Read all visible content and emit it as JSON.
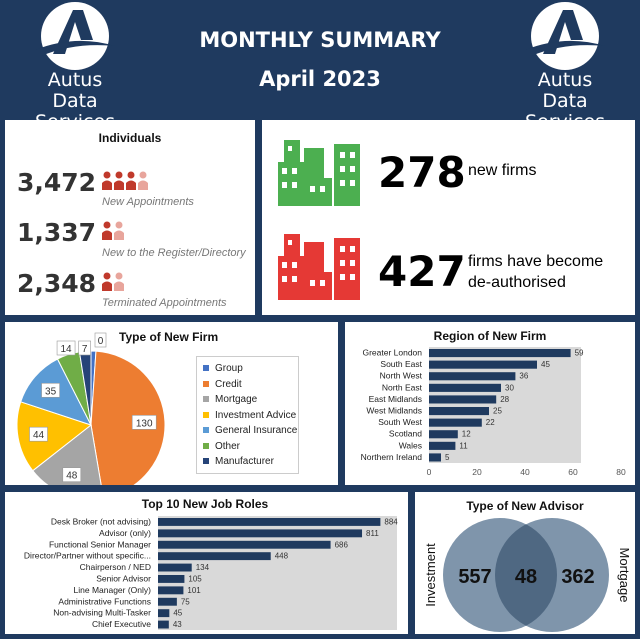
{
  "header": {
    "title": "MONTHLY SUMMARY",
    "subtitle": "April 2023",
    "brand_line1": "Autus",
    "brand_line2": "Data Services"
  },
  "individuals": {
    "title": "Individuals",
    "rows": [
      {
        "value": "3,472",
        "label": "New Appointments",
        "icon": "people-4-icon"
      },
      {
        "value": "1,337",
        "label": "New to the Register/Directory",
        "icon": "people-2-icon"
      },
      {
        "value": "2,348",
        "label": "Terminated Appointments",
        "icon": "people-2-icon"
      }
    ]
  },
  "firms": {
    "new_value": "278",
    "new_label": "new firms",
    "deauth_value": "427",
    "deauth_label_1": "firms have become",
    "deauth_label_2": "de-authorised",
    "new_color": "#4caf50",
    "deauth_color": "#e53935"
  },
  "chart_data": [
    {
      "type": "pie",
      "title": "Type of New Firm",
      "categories": [
        "Group",
        "Credit",
        "Mortgage",
        "Investment Advice",
        "General Insurance",
        "Other",
        "Manufacturer"
      ],
      "values": [
        3,
        130,
        48,
        44,
        35,
        14,
        7
      ],
      "value_labels": [
        "",
        "130",
        "48",
        "44",
        "35",
        "14",
        "7"
      ],
      "extra_label": "0",
      "colors": [
        "#4472c4",
        "#ed7d31",
        "#a5a5a5",
        "#ffc000",
        "#5b9bd5",
        "#70ad47",
        "#264478"
      ],
      "legend_position": "right"
    },
    {
      "type": "bar",
      "title": "Region of New Firm",
      "categories": [
        "Greater London",
        "South East",
        "North West",
        "North East",
        "East Midlands",
        "West Midlands",
        "South West",
        "Scotland",
        "Wales",
        "Northern Ireland"
      ],
      "values": [
        59,
        45,
        36,
        30,
        28,
        25,
        22,
        12,
        11,
        5
      ],
      "xlim": [
        0,
        80
      ],
      "xticks": [
        "0",
        "20",
        "40",
        "60",
        "80"
      ],
      "color": "#1f3a5f"
    },
    {
      "type": "bar",
      "title": "Top 10 New Job Roles",
      "categories": [
        "Desk Broker (not advising)",
        "Advisor (only)",
        "Functional Senior Manager",
        "Director/Partner without specific...",
        "Chairperson / NED",
        "Senior Advisor",
        "Line Manager (Only)",
        "Administrative Functions",
        "Non-advising Multi-Tasker",
        "Chief Executive"
      ],
      "values": [
        884,
        811,
        686,
        448,
        134,
        105,
        101,
        75,
        45,
        43
      ],
      "xlim": [
        0,
        950
      ],
      "color": "#1f3a5f"
    },
    {
      "type": "venn",
      "title": "Type of New Advisor",
      "left_label": "Investment",
      "right_label": "Mortgage",
      "left_value": "557",
      "both_value": "48",
      "right_value": "362",
      "color": "#7f95ab",
      "overlap_color": "#4f6882"
    }
  ]
}
